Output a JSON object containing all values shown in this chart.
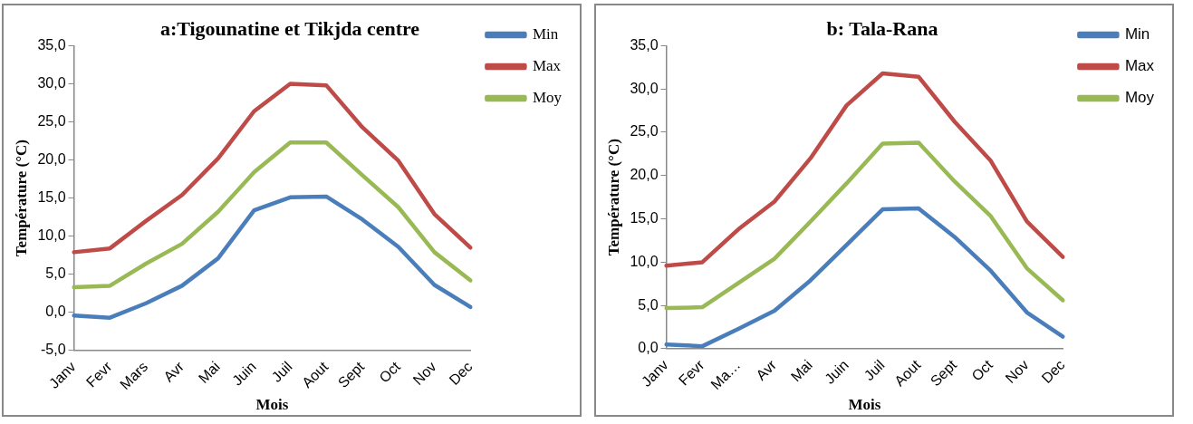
{
  "chart_data": [
    {
      "type": "line",
      "title": "a:Tigounatine et Tikjda centre",
      "xlabel": "Mois",
      "ylabel": "Température (°C)",
      "categories": [
        "Janv",
        "Fevr",
        "Mars",
        "Avr",
        "Mai",
        "Juin",
        "Juil",
        "Aout",
        "Sept",
        "Oct",
        "Nov",
        "Dec"
      ],
      "series": [
        {
          "name": "Min",
          "color": "#4a7ebb",
          "values": [
            -0.4,
            -0.7,
            1.2,
            3.5,
            7.1,
            13.4,
            15.1,
            15.2,
            12.2,
            8.6,
            3.6,
            0.7
          ]
        },
        {
          "name": "Max",
          "color": "#be4b48",
          "values": [
            7.9,
            8.4,
            12.0,
            15.4,
            20.2,
            26.4,
            30.0,
            29.8,
            24.3,
            19.9,
            12.9,
            8.5
          ]
        },
        {
          "name": "Moy",
          "color": "#98b954",
          "values": [
            3.3,
            3.5,
            6.4,
            9.0,
            13.2,
            18.4,
            22.3,
            22.3,
            18.0,
            13.8,
            7.9,
            4.2
          ]
        }
      ],
      "ylim": [
        -5,
        35
      ],
      "yticks": [
        {
          "value": -5,
          "label": "-5,0"
        },
        {
          "value": 0,
          "label": "0,0"
        },
        {
          "value": 5,
          "label": "5,0"
        },
        {
          "value": 10,
          "label": "10,0"
        },
        {
          "value": 15,
          "label": "15,0"
        },
        {
          "value": 20,
          "label": "20,0"
        },
        {
          "value": 25,
          "label": "25,0"
        },
        {
          "value": 30,
          "label": "30,0"
        },
        {
          "value": 35,
          "label": "35,0"
        }
      ],
      "grid": false,
      "legend": "top right",
      "marker": "none",
      "line_style": "solid"
    },
    {
      "type": "line",
      "title": "b: Tala-Rana",
      "xlabel": "Mois",
      "ylabel": "Température (°C)",
      "categories": [
        "Janv",
        "Fevr",
        "Ma…",
        "Avr",
        "Mai",
        "Juin",
        "Juil",
        "Aout",
        "Sept",
        "Oct",
        "Nov",
        "Dec"
      ],
      "series": [
        {
          "name": "Min",
          "color": "#4a7ebb",
          "values": [
            0.5,
            0.3,
            2.3,
            4.4,
            7.9,
            12.0,
            16.1,
            16.2,
            12.9,
            9.0,
            4.2,
            1.4
          ]
        },
        {
          "name": "Max",
          "color": "#be4b48",
          "values": [
            9.6,
            10.0,
            13.8,
            17.0,
            22.0,
            28.1,
            31.8,
            31.4,
            26.2,
            21.7,
            14.7,
            10.6
          ]
        },
        {
          "name": "Moy",
          "color": "#98b954",
          "values": [
            4.7,
            4.8,
            7.6,
            10.4,
            14.7,
            19.1,
            23.7,
            23.8,
            19.3,
            15.3,
            9.3,
            5.6
          ]
        }
      ],
      "ylim": [
        0,
        35
      ],
      "yticks": [
        {
          "value": 0,
          "label": "0,0"
        },
        {
          "value": 5,
          "label": "5,0"
        },
        {
          "value": 10,
          "label": "10,0"
        },
        {
          "value": 15,
          "label": "15,0"
        },
        {
          "value": 20,
          "label": "20,0"
        },
        {
          "value": 25,
          "label": "25,0"
        },
        {
          "value": 30,
          "label": "30,0"
        },
        {
          "value": 35,
          "label": "35,0"
        }
      ],
      "grid": false,
      "legend": "top right",
      "marker": "none",
      "line_style": "solid"
    }
  ]
}
